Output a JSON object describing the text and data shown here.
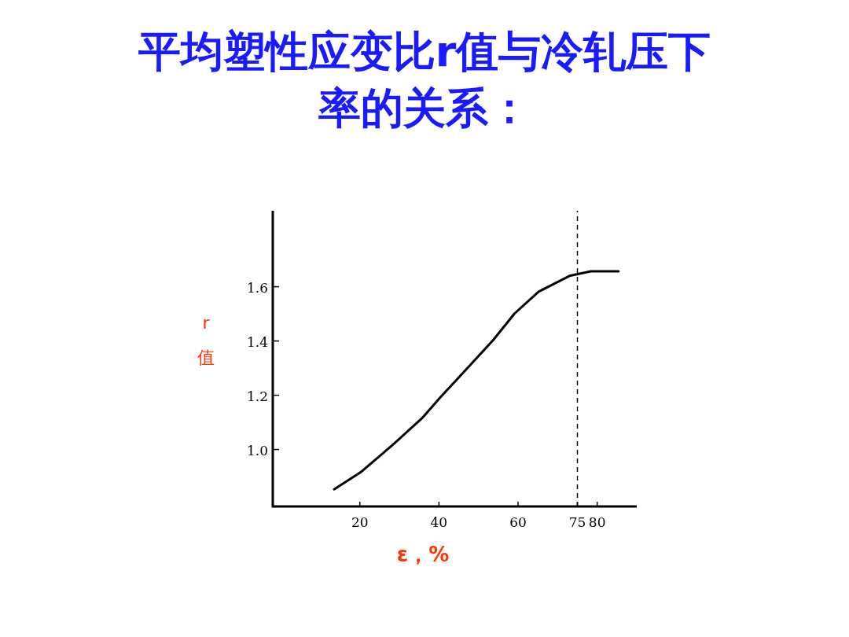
{
  "chart_data": {
    "type": "line",
    "title": "平均塑性应变比r值与冷轧压下率的关系：",
    "xlabel": "ε，%",
    "ylabel": "r值",
    "xlim": [
      -2,
      90
    ],
    "ylim": [
      0.79,
      1.88
    ],
    "xticks": [
      20,
      40,
      60,
      75,
      80
    ],
    "yticks": [
      {
        "value": 1.0,
        "label": "1.0"
      },
      1.2,
      1.4,
      1.6
    ],
    "grid": false,
    "marker": "none",
    "line_style": "solid",
    "series": [
      {
        "color": "#000000",
        "x": [
          13.5,
          20.2,
          28.1,
          35.7,
          40.4,
          47.4,
          53.7,
          59.1,
          65.2,
          73.0,
          78.4,
          85.4
        ],
        "values": [
          0.853,
          0.916,
          1.014,
          1.115,
          1.193,
          1.303,
          1.403,
          1.501,
          1.582,
          1.64,
          1.657,
          1.657
        ]
      }
    ],
    "ref_lines": [
      {
        "axis": "x",
        "value": 75,
        "line_style": "dashed",
        "color": "#000000"
      }
    ]
  }
}
